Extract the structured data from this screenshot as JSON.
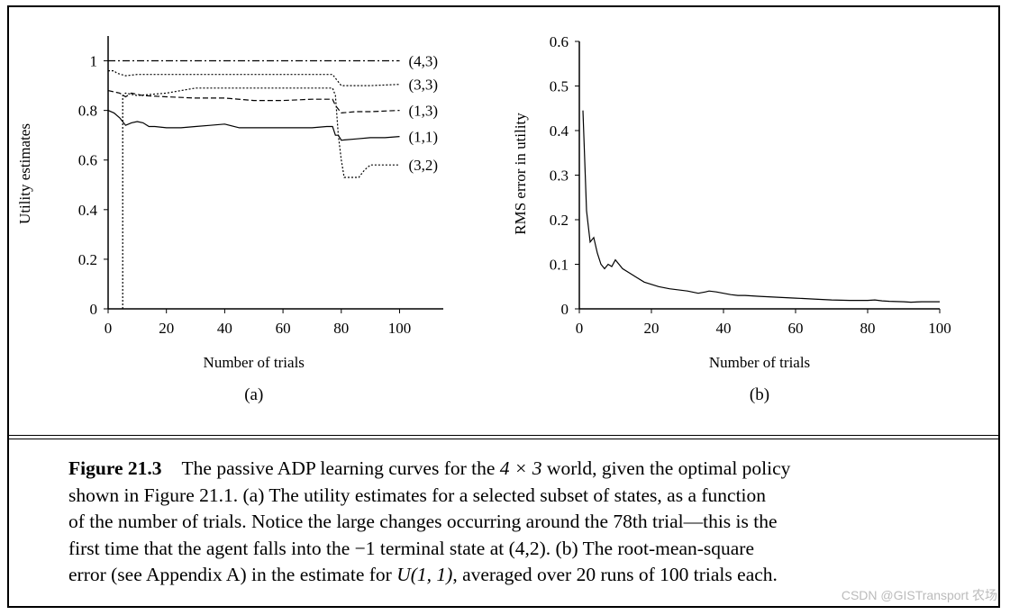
{
  "chart_data": [
    {
      "type": "line",
      "panel_label": "(a)",
      "xlabel": "Number of trials",
      "ylabel": "Utility estimates",
      "xlim": [
        0,
        115
      ],
      "ylim": [
        0,
        1.1
      ],
      "xticks": [
        "0",
        "20",
        "40",
        "60",
        "80",
        "100"
      ],
      "yticks": [
        "0",
        "0.2",
        "0.4",
        "0.6",
        "0.8",
        "1"
      ],
      "series": [
        {
          "name": "(4,3)",
          "style": "dashdot",
          "x": [
            0,
            100
          ],
          "y": [
            1.0,
            1.0
          ]
        },
        {
          "name": "(3,3)",
          "style": "dotted",
          "x": [
            0,
            2,
            3,
            6,
            10,
            20,
            30,
            40,
            50,
            60,
            70,
            77,
            78,
            80,
            90,
            100
          ],
          "y": [
            0.96,
            0.96,
            0.95,
            0.94,
            0.945,
            0.945,
            0.945,
            0.945,
            0.945,
            0.945,
            0.945,
            0.945,
            0.93,
            0.9,
            0.9,
            0.905
          ]
        },
        {
          "name": "(1,3)",
          "style": "dashed",
          "x": [
            0,
            2,
            4,
            6,
            8,
            12,
            20,
            30,
            40,
            50,
            60,
            70,
            77,
            78,
            80,
            85,
            90,
            100
          ],
          "y": [
            0.88,
            0.875,
            0.87,
            0.855,
            0.87,
            0.86,
            0.855,
            0.85,
            0.85,
            0.84,
            0.84,
            0.845,
            0.845,
            0.82,
            0.79,
            0.795,
            0.795,
            0.8
          ]
        },
        {
          "name": "(1,1)",
          "style": "solid",
          "x": [
            0,
            2,
            4,
            6,
            8,
            10,
            12,
            14,
            16,
            20,
            25,
            30,
            35,
            40,
            45,
            50,
            55,
            60,
            65,
            70,
            75,
            77,
            78,
            79,
            80,
            85,
            90,
            95,
            100
          ],
          "y": [
            0.8,
            0.79,
            0.77,
            0.74,
            0.75,
            0.755,
            0.75,
            0.735,
            0.735,
            0.73,
            0.73,
            0.735,
            0.74,
            0.745,
            0.73,
            0.73,
            0.73,
            0.73,
            0.73,
            0.73,
            0.735,
            0.735,
            0.7,
            0.7,
            0.68,
            0.685,
            0.69,
            0.69,
            0.695
          ]
        },
        {
          "name": "(3,2)",
          "style": "dotted",
          "x": [
            5,
            5,
            6,
            10,
            20,
            30,
            40,
            50,
            60,
            70,
            77,
            78,
            79,
            80,
            81,
            85,
            86,
            88,
            90,
            95,
            100
          ],
          "y": [
            0.0,
            0.86,
            0.87,
            0.86,
            0.87,
            0.89,
            0.89,
            0.89,
            0.89,
            0.89,
            0.89,
            0.86,
            0.7,
            0.6,
            0.53,
            0.53,
            0.53,
            0.56,
            0.58,
            0.58,
            0.58
          ]
        }
      ]
    },
    {
      "type": "line",
      "panel_label": "(b)",
      "xlabel": "Number of trials",
      "ylabel": "RMS error in utility",
      "xlim": [
        0,
        100
      ],
      "ylim": [
        0,
        0.6
      ],
      "xticks": [
        "0",
        "20",
        "40",
        "60",
        "80",
        "100"
      ],
      "yticks": [
        "0",
        "0.1",
        "0.2",
        "0.3",
        "0.4",
        "0.5",
        "0.6"
      ],
      "series": [
        {
          "style": "solid",
          "x": [
            1,
            2,
            3,
            4,
            5,
            6,
            7,
            8,
            9,
            10,
            12,
            14,
            16,
            18,
            20,
            22,
            25,
            28,
            30,
            33,
            35,
            36,
            38,
            40,
            42,
            44,
            46,
            50,
            55,
            60,
            65,
            70,
            75,
            80,
            82,
            84,
            86,
            90,
            92,
            95,
            100
          ],
          "y": [
            0.445,
            0.22,
            0.15,
            0.16,
            0.125,
            0.1,
            0.09,
            0.1,
            0.095,
            0.11,
            0.09,
            0.08,
            0.07,
            0.06,
            0.055,
            0.05,
            0.045,
            0.042,
            0.04,
            0.035,
            0.038,
            0.04,
            0.038,
            0.035,
            0.032,
            0.03,
            0.03,
            0.028,
            0.026,
            0.024,
            0.022,
            0.02,
            0.019,
            0.019,
            0.02,
            0.018,
            0.017,
            0.016,
            0.015,
            0.016,
            0.016
          ]
        }
      ]
    }
  ],
  "caption": {
    "figure_label": "Figure 21.3",
    "line1_pre": "The passive ADP learning curves for the ",
    "line1_math": "4 × 3",
    "line1_post": " world, given the optimal policy",
    "line2": "shown in Figure 21.1. (a) The utility estimates for a selected subset of states, as a function",
    "line3": "of the number of trials. Notice the large changes occurring around the 78th trial—this is the",
    "line4_pre": "first time that the agent falls into the ",
    "line4_math": "−1",
    "line4_post": " terminal state at (4,2). (b) The root-mean-square",
    "line5_pre": "error (see Appendix A) in the estimate for ",
    "line5_math": "U(1, 1)",
    "line5_post": ", averaged over 20 runs of 100 trials each."
  },
  "watermark": "CSDN @GISTransport 农场"
}
